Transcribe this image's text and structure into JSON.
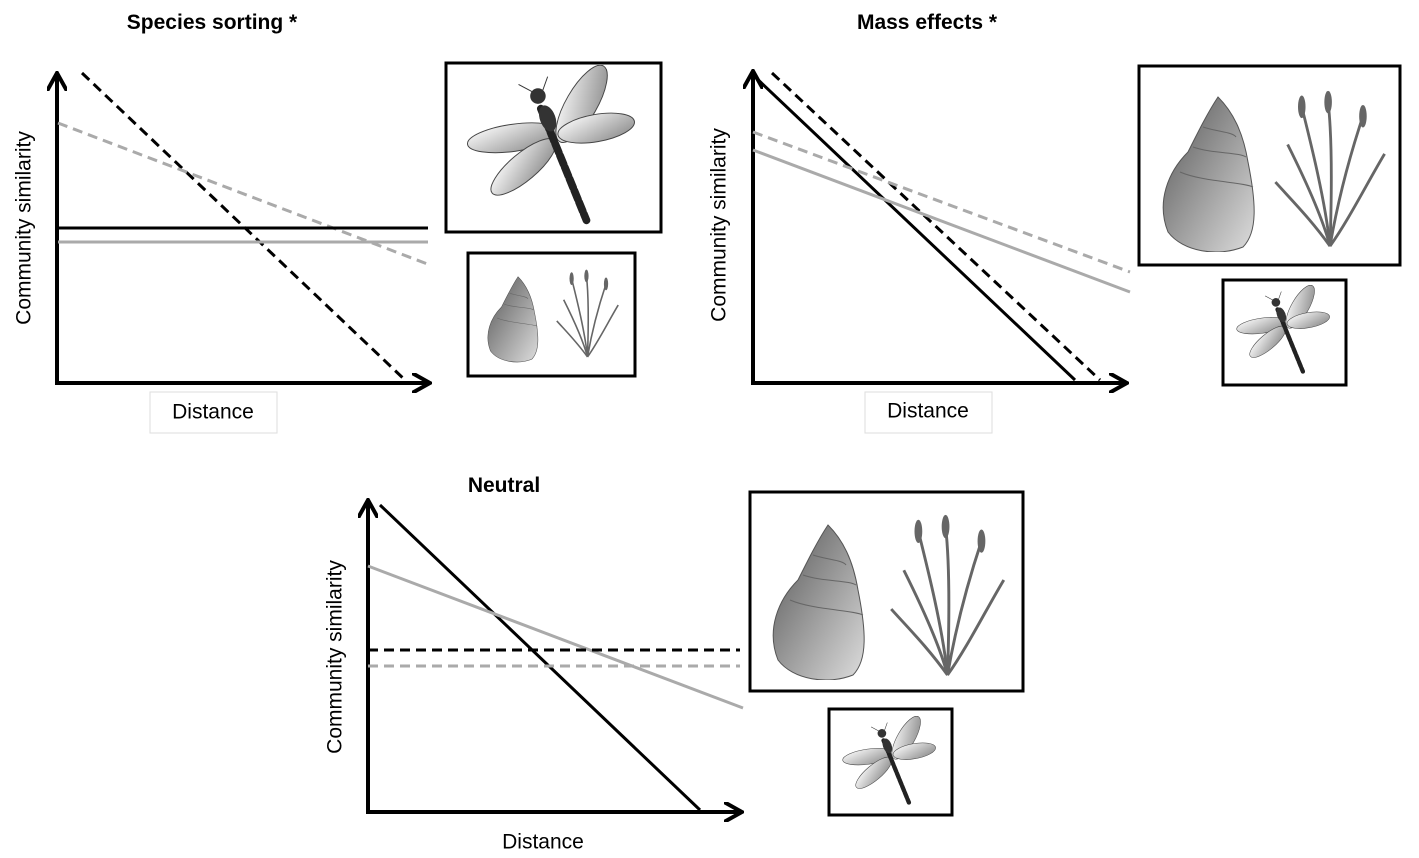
{
  "panels": [
    {
      "title": "Species sorting *",
      "y_label": "Community similarity",
      "x_label": "Distance"
    },
    {
      "title": "Mass effects *",
      "y_label": "Community similarity",
      "x_label": "Distance"
    },
    {
      "title": "Neutral",
      "y_label": "Community similarity",
      "x_label": "Distance"
    }
  ]
}
